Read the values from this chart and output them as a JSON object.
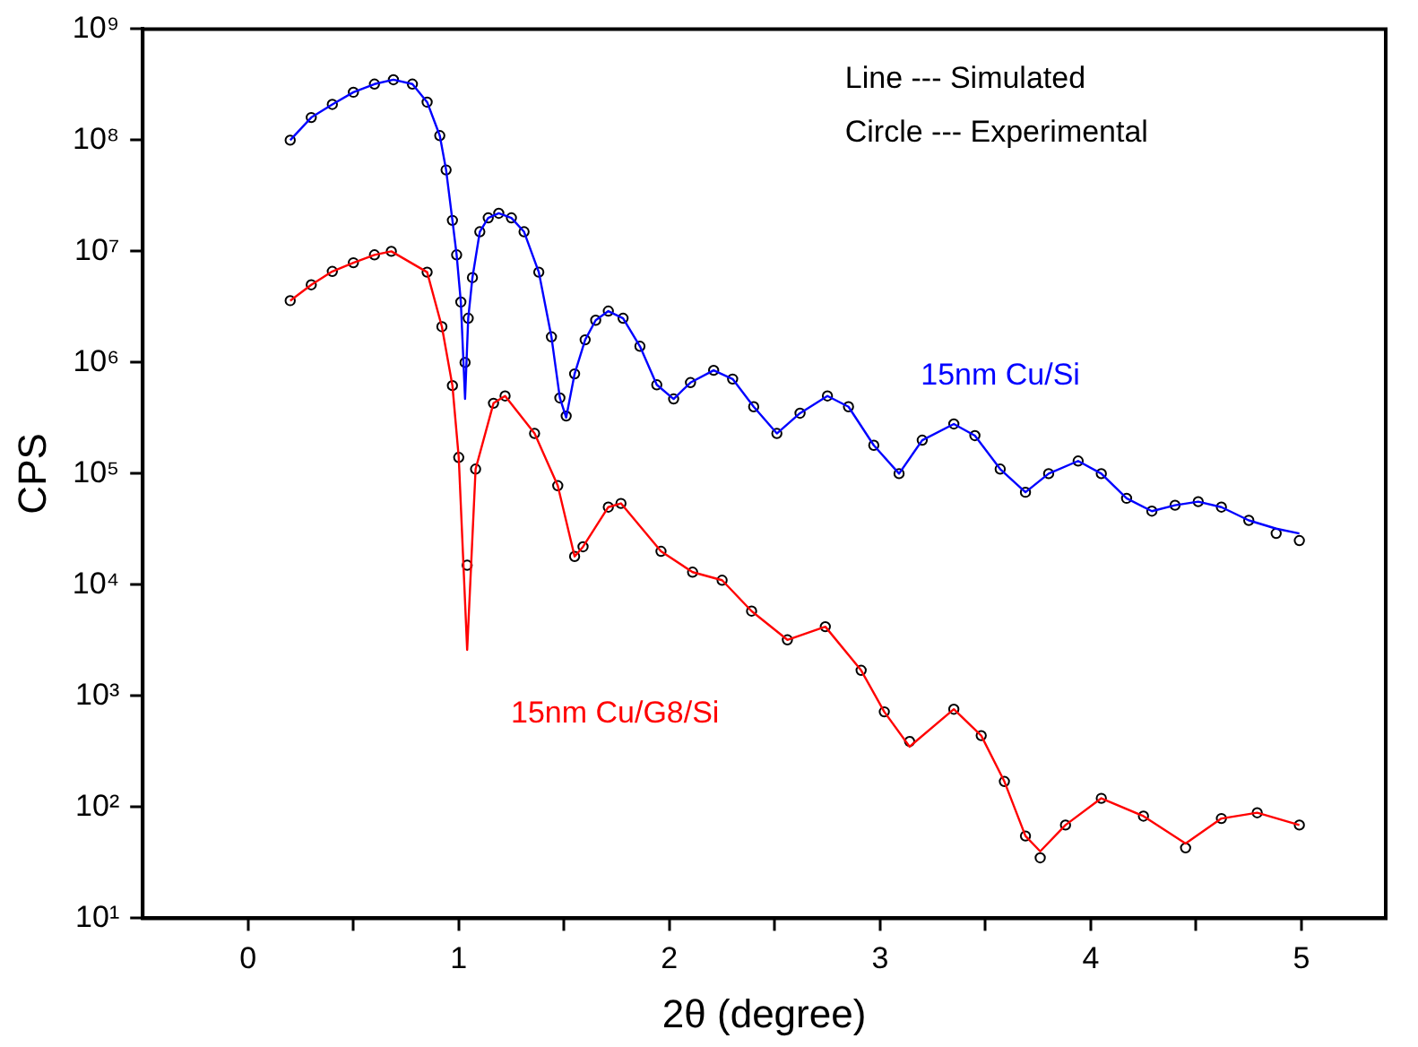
{
  "chart_data": {
    "type": "scatter",
    "xlabel": "2θ (degree)",
    "ylabel": "CPS",
    "annotations": [
      "Line --- Simulated",
      "Circle --- Experimental"
    ],
    "log": "y",
    "grid": false,
    "legend": false,
    "xlim": [
      -0.5,
      5.4
    ],
    "xticks": [
      0,
      {
        "value": 0.5,
        "label": null
      },
      1,
      {
        "value": 1.5,
        "label": null
      },
      2,
      {
        "value": 2.5,
        "label": null
      },
      3,
      {
        "value": 3.5,
        "label": null
      },
      4,
      {
        "value": 4.5,
        "label": null
      },
      5
    ],
    "ylim": [
      10,
      1000000000
    ],
    "yticks": [
      {
        "value": 10,
        "label": "10¹"
      },
      {
        "value": 100,
        "label": "10²"
      },
      {
        "value": 1000,
        "label": "10³"
      },
      {
        "value": 10000,
        "label": "10⁴"
      },
      {
        "value": 100000,
        "label": "10⁵"
      },
      {
        "value": 1000000,
        "label": "10⁶"
      },
      {
        "value": 10000000,
        "label": "10⁷"
      },
      {
        "value": 100000000,
        "label": "10⁸"
      },
      {
        "value": 1000000000,
        "label": "10⁹"
      }
    ],
    "series": [
      {
        "type": "scatter",
        "marker": "circle",
        "color": "#000000",
        "x": [
          0.2,
          0.3,
          0.4,
          0.5,
          0.6,
          0.69,
          0.78,
          0.85,
          0.91,
          0.94,
          0.97,
          0.99,
          1.01,
          1.03,
          1.045,
          1.065,
          1.1,
          1.14,
          1.19,
          1.25,
          1.31,
          1.38,
          1.44,
          1.48,
          1.51,
          1.55,
          1.6,
          1.65,
          1.71,
          1.78,
          1.86,
          1.94,
          2.02,
          2.1,
          2.21,
          2.3,
          2.4,
          2.51,
          2.62,
          2.75,
          2.85,
          2.97,
          3.09,
          3.2,
          3.35,
          3.45,
          3.57,
          3.69,
          3.8,
          3.94,
          4.05,
          4.17,
          4.29,
          4.4,
          4.51,
          4.62,
          4.75,
          4.88,
          4.99
        ],
        "values": [
          100000000.0,
          160000000.0,
          210000000.0,
          270000000.0,
          320000000.0,
          350000000.0,
          320000000.0,
          220000000.0,
          110000000.0,
          54000000.0,
          19000000.0,
          9300000.0,
          3500000.0,
          1000000.0,
          2500000.0,
          5800000.0,
          15000000.0,
          20000000.0,
          22000000.0,
          20000000.0,
          15000000.0,
          6500000.0,
          1700000.0,
          480000.0,
          330000.0,
          790000.0,
          1600000.0,
          2400000.0,
          2900000.0,
          2500000.0,
          1400000.0,
          630000.0,
          470000.0,
          660000.0,
          850000.0,
          710000.0,
          400000.0,
          230000.0,
          350000.0,
          500000.0,
          400000.0,
          180000.0,
          100000.0,
          200000.0,
          280000.0,
          220000.0,
          110000.0,
          68000.0,
          100000.0,
          130000.0,
          100000.0,
          60000.0,
          46000.0,
          52000.0,
          56000.0,
          50000.0,
          38000.0,
          29000.0,
          25000.0
        ]
      },
      {
        "type": "line",
        "name": "15nm Cu/Si",
        "marker": "none",
        "line_style": "solid",
        "color": "#0000ff",
        "x": [
          0.2,
          0.3,
          0.4,
          0.5,
          0.6,
          0.69,
          0.78,
          0.85,
          0.91,
          0.94,
          0.97,
          0.99,
          1.01,
          1.03,
          1.045,
          1.065,
          1.1,
          1.14,
          1.19,
          1.25,
          1.31,
          1.38,
          1.44,
          1.48,
          1.51,
          1.55,
          1.6,
          1.65,
          1.71,
          1.78,
          1.86,
          1.94,
          2.02,
          2.1,
          2.21,
          2.3,
          2.4,
          2.51,
          2.62,
          2.75,
          2.85,
          2.97,
          3.09,
          3.2,
          3.35,
          3.45,
          3.57,
          3.69,
          3.8,
          3.94,
          4.05,
          4.17,
          4.29,
          4.4,
          4.51,
          4.62,
          4.75,
          4.88,
          4.99
        ],
        "values": [
          100000000.0,
          160000000.0,
          210000000.0,
          270000000.0,
          320000000.0,
          350000000.0,
          320000000.0,
          220000000.0,
          110000000.0,
          54000000.0,
          19000000.0,
          9300000.0,
          3500000.0,
          470000.0,
          2500000.0,
          5800000.0,
          15000000.0,
          20000000.0,
          22000000.0,
          20000000.0,
          15000000.0,
          6500000.0,
          1700000.0,
          480000.0,
          320000.0,
          790000.0,
          1600000.0,
          2400000.0,
          2900000.0,
          2500000.0,
          1400000.0,
          630000.0,
          470000.0,
          660000.0,
          850000.0,
          710000.0,
          400000.0,
          230000.0,
          350000.0,
          500000.0,
          400000.0,
          180000.0,
          100000.0,
          200000.0,
          280000.0,
          220000.0,
          110000.0,
          68000.0,
          100000.0,
          130000.0,
          100000.0,
          60000.0,
          46000.0,
          52000.0,
          56000.0,
          50000.0,
          38000.0,
          32000.0,
          29000.0
        ]
      },
      {
        "type": "scatter",
        "marker": "circle",
        "color": "#000000",
        "x": [
          0.2,
          0.3,
          0.4,
          0.5,
          0.6,
          0.68,
          0.85,
          0.92,
          0.97,
          1.0,
          1.04,
          1.08,
          1.165,
          1.22,
          1.36,
          1.47,
          1.55,
          1.59,
          1.71,
          1.77,
          1.96,
          2.11,
          2.25,
          2.39,
          2.56,
          2.74,
          2.91,
          3.02,
          3.14,
          3.35,
          3.48,
          3.59,
          3.69,
          3.76,
          3.88,
          4.05,
          4.25,
          4.45,
          4.62,
          4.79,
          4.99
        ],
        "values": [
          3600000.0,
          5000000.0,
          6600000.0,
          7900000.0,
          9300000.0,
          10000000.0,
          6500000.0,
          2100000.0,
          620000.0,
          140000.0,
          15000.0,
          110000.0,
          430000.0,
          500000.0,
          230000.0,
          78000.0,
          18000.0,
          22000.0,
          50000.0,
          54000.0,
          20000.0,
          13000.0,
          11000.0,
          5800.0,
          3200.0,
          4200.0,
          1700.0,
          720,
          390,
          760,
          440,
          170,
          55,
          35,
          69,
          120,
          83,
          43,
          79,
          89,
          69
        ]
      },
      {
        "type": "line",
        "name": "15nm Cu/G8/Si",
        "marker": "none",
        "line_style": "solid",
        "color": "#ff0000",
        "x": [
          0.2,
          0.3,
          0.4,
          0.5,
          0.6,
          0.68,
          0.85,
          0.92,
          0.97,
          1.0,
          1.04,
          1.08,
          1.165,
          1.22,
          1.36,
          1.47,
          1.55,
          1.59,
          1.71,
          1.77,
          1.96,
          2.11,
          2.25,
          2.39,
          2.56,
          2.74,
          2.91,
          3.02,
          3.14,
          3.35,
          3.48,
          3.59,
          3.69,
          3.76,
          3.88,
          4.05,
          4.25,
          4.45,
          4.62,
          4.79,
          4.99
        ],
        "values": [
          3600000.0,
          5000000.0,
          6600000.0,
          7900000.0,
          9300000.0,
          10000000.0,
          6500000.0,
          2100000.0,
          620000.0,
          140000.0,
          2600.0,
          110000.0,
          430000.0,
          500000.0,
          230000.0,
          78000.0,
          18000.0,
          22000.0,
          50000.0,
          54000.0,
          20000.0,
          13000.0,
          11000.0,
          5800.0,
          3200.0,
          4200.0,
          1700.0,
          720,
          350,
          760,
          440,
          170,
          55,
          40,
          69,
          120,
          83,
          47,
          79,
          89,
          69
        ]
      }
    ]
  }
}
